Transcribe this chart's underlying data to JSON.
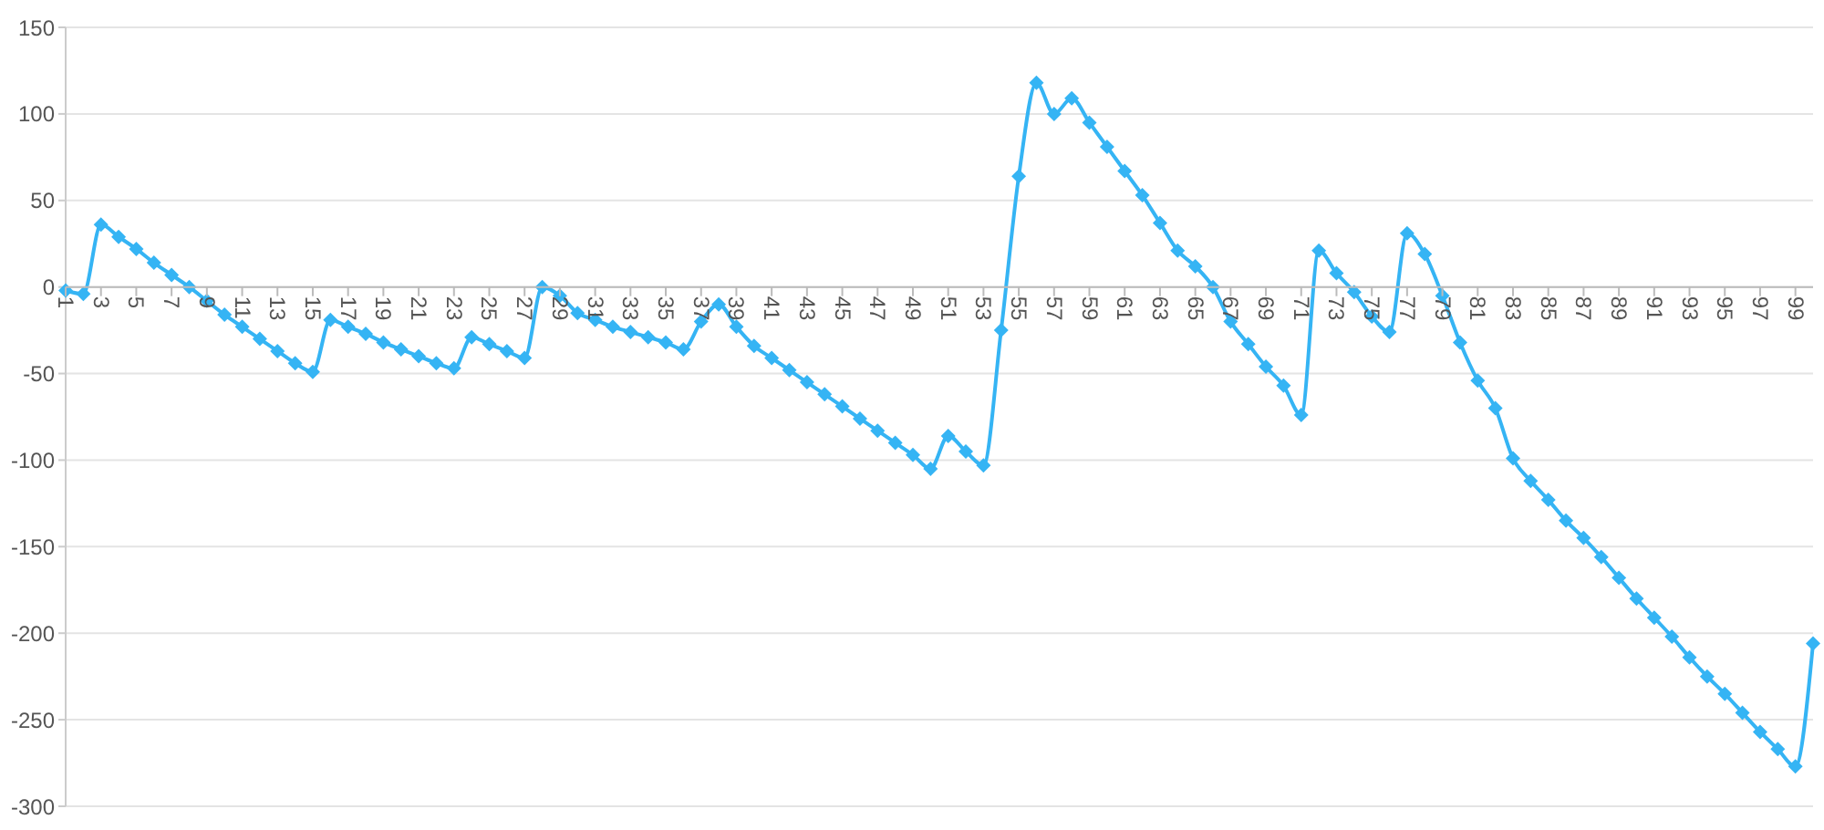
{
  "chart_data": {
    "type": "line",
    "categories": [
      "1",
      null,
      "3",
      null,
      "5",
      null,
      "7",
      null,
      "9",
      null,
      "11",
      null,
      "13",
      null,
      "15",
      null,
      "17",
      null,
      "19",
      null,
      "21",
      null,
      "23",
      null,
      "25",
      null,
      "27",
      null,
      "29",
      null,
      "31",
      null,
      "33",
      null,
      "35",
      null,
      "37",
      null,
      "39",
      null,
      "41",
      null,
      "43",
      null,
      "45",
      null,
      "47",
      null,
      "49",
      null,
      "51",
      null,
      "53",
      null,
      "55",
      null,
      "57",
      null,
      "59",
      null,
      "61",
      null,
      "63",
      null,
      "65",
      null,
      "67",
      null,
      "69",
      null,
      "71",
      null,
      "73",
      null,
      "75",
      null,
      "77",
      null,
      "79",
      null,
      "81",
      null,
      "83",
      null,
      "85",
      null,
      "87",
      null,
      "89",
      null,
      "91",
      null,
      "93",
      null,
      "95",
      null,
      "97",
      null,
      "99",
      null
    ],
    "values": [
      -2,
      -4,
      36,
      29,
      22,
      14,
      7,
      0,
      -8,
      -16,
      -23,
      -30,
      -37,
      -44,
      -49,
      -19,
      -23,
      -27,
      -32,
      -36,
      -40,
      -44,
      -47,
      -29,
      -33,
      -37,
      -41,
      0,
      -5,
      -15,
      -19,
      -23,
      -26,
      -29,
      -32,
      -36,
      -20,
      -10,
      -23,
      -34,
      -41,
      -48,
      -55,
      -62,
      -69,
      -76,
      -83,
      -90,
      -97,
      -105,
      -86,
      -95,
      -103,
      -25,
      64,
      118,
      100,
      109,
      95,
      81,
      67,
      53,
      37,
      21,
      12,
      0,
      -20,
      -33,
      -46,
      -57,
      -74,
      21,
      8,
      -3,
      -17,
      -26,
      31,
      19,
      -5,
      -32,
      -54,
      -70,
      -99,
      -112,
      -123,
      -135,
      -145,
      -156,
      -168,
      -180,
      -191,
      -202,
      -214,
      -225,
      -235,
      -246,
      -257,
      -267,
      -277,
      -206
    ],
    "color": "#35b4f4",
    "ylim": [
      -300,
      150
    ],
    "yticks": [
      -300,
      -250,
      -200,
      -150,
      -100,
      -50,
      0,
      50,
      100,
      150
    ],
    "grid": "y",
    "marker": "diamond"
  }
}
